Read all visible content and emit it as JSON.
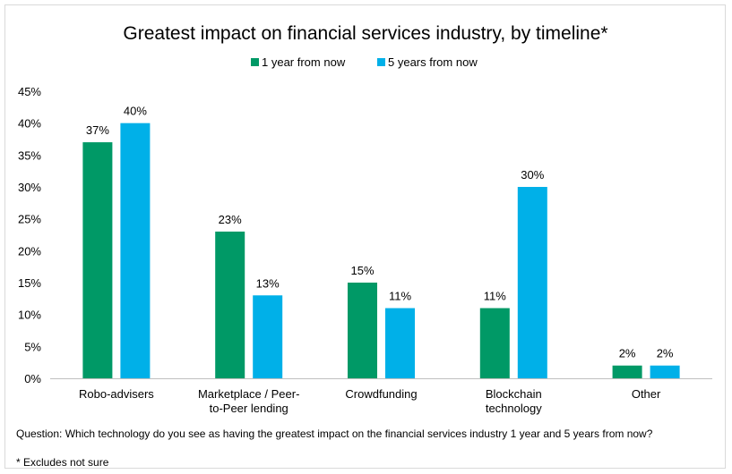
{
  "chart_data": {
    "type": "bar",
    "title": "Greatest impact on financial services industry, by timeline*",
    "categories": [
      [
        "Robo-advisers"
      ],
      [
        "Marketplace / Peer-",
        "to-Peer lending"
      ],
      [
        "Crowdfunding"
      ],
      [
        "Blockchain",
        "technology"
      ],
      [
        "Other"
      ]
    ],
    "series": [
      {
        "name": "1 year from now",
        "color": "#009966",
        "values": [
          37,
          23,
          15,
          11,
          2
        ],
        "labels": [
          "37%",
          "23%",
          "15%",
          "11%",
          "2%"
        ]
      },
      {
        "name": "5 years from now",
        "color": "#00b0e8",
        "values": [
          40,
          13,
          11,
          30,
          2
        ],
        "labels": [
          "40%",
          "13%",
          "11%",
          "30%",
          "2%"
        ]
      }
    ],
    "ylim": [
      0,
      45
    ],
    "ytick_values": [
      0,
      5,
      10,
      15,
      20,
      25,
      30,
      35,
      40,
      45
    ],
    "ytick_labels": [
      "0%",
      "5%",
      "10%",
      "15%",
      "20%",
      "25%",
      "30%",
      "35%",
      "40%",
      "45%"
    ],
    "xlabel": "",
    "ylabel": "",
    "grid": false,
    "legend_position": "top-center"
  },
  "footnotes": {
    "question": "Question: Which technology do you see as having the greatest impact on the financial services industry 1 year and 5 years from now?",
    "excludes": "* Excludes not sure"
  }
}
